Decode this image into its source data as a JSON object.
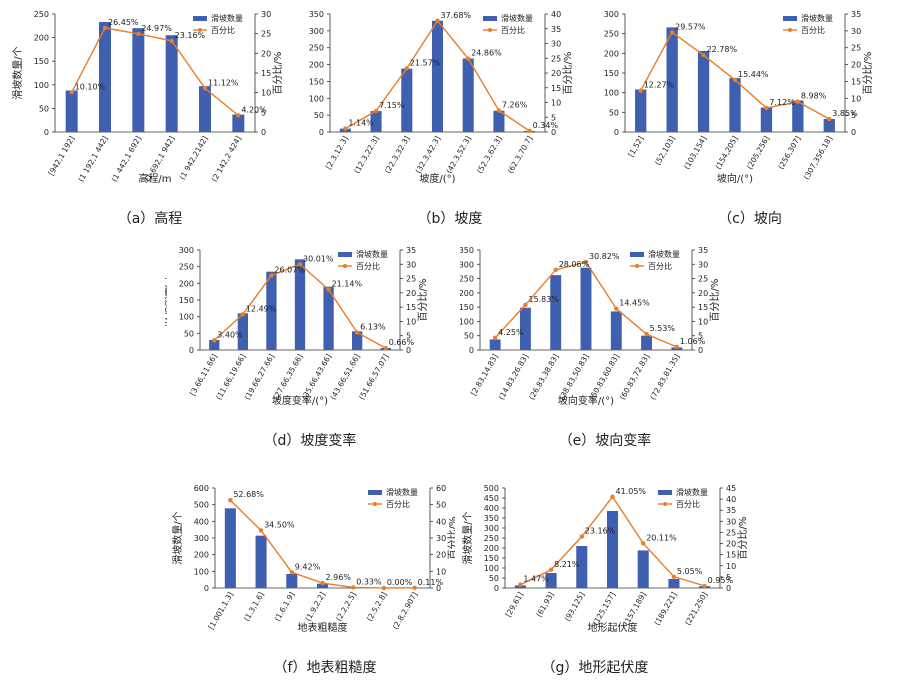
{
  "legend": {
    "bar_label": "滑坡数量",
    "line_label": "百分比"
  },
  "colors": {
    "bar": "#3f5fb0",
    "line": "#e87d2a",
    "axis": "#333333",
    "text": "#222222"
  },
  "chart_data": [
    {
      "id": "a",
      "type": "bar",
      "caption": "（a）高程",
      "xlabel": "高程/m",
      "ylabel": "滑坡数量/个",
      "y2label": "百分比/%",
      "ylim": [
        0,
        250
      ],
      "yticks": [
        0,
        50,
        100,
        150,
        200,
        250
      ],
      "y2lim": [
        0,
        30
      ],
      "y2ticks": [
        0,
        5,
        10,
        15,
        20,
        25,
        30
      ],
      "categories": [
        "[942,1 192]",
        "(1 192,1 442]",
        "(1 442,1 692]",
        "(1 692,1 942]",
        "(1 942,2142]",
        "(2 142,2 424]"
      ],
      "series": [
        {
          "name": "滑坡数量",
          "kind": "bar",
          "values": [
            88,
            233,
            220,
            205,
            97,
            37
          ]
        },
        {
          "name": "百分比",
          "kind": "line",
          "values": [
            10.1,
            26.45,
            24.97,
            23.16,
            11.12,
            4.2
          ]
        }
      ],
      "data_labels": [
        "10.10%",
        "26.45%",
        "24.97%",
        "23.16%",
        "11.12%",
        "4.20%"
      ],
      "grid": false,
      "legend_position": "top-right"
    },
    {
      "id": "b",
      "type": "bar",
      "caption": "（b）坡度",
      "xlabel": "坡度/(°)",
      "ylabel": "滑坡数量/个",
      "y2label": "百分比/%",
      "ylim": [
        0,
        350
      ],
      "yticks": [
        0,
        50,
        100,
        150,
        200,
        250,
        300,
        350
      ],
      "y2lim": [
        0,
        40
      ],
      "y2ticks": [
        0,
        5,
        10,
        15,
        20,
        25,
        30,
        35,
        40
      ],
      "categories": [
        "[2.3,12.3]",
        "(12.3,22.3]",
        "(22.3,32.3]",
        "(32.3,42.3]",
        "(42.3,52.3]",
        "(52.3,62.3]",
        "(62.3,70.7]"
      ],
      "series": [
        {
          "name": "滑坡数量",
          "kind": "bar",
          "values": [
            10,
            62,
            188,
            330,
            218,
            63,
            3
          ]
        },
        {
          "name": "百分比",
          "kind": "line",
          "values": [
            1.14,
            7.15,
            21.57,
            37.68,
            24.86,
            7.26,
            0.34
          ]
        }
      ],
      "data_labels": [
        "1.14%",
        "7.15%",
        "21.57%",
        "37.68%",
        "24.86%",
        "7.26%",
        "0.34%"
      ],
      "grid": false,
      "legend_position": "top-right"
    },
    {
      "id": "c",
      "type": "bar",
      "caption": "（c）坡向",
      "xlabel": "坡向/(°)",
      "ylabel": "滑坡数量/个",
      "y2label": "百分比/%",
      "ylim": [
        0,
        300
      ],
      "yticks": [
        0,
        50,
        100,
        150,
        200,
        250,
        300
      ],
      "y2lim": [
        0,
        35
      ],
      "y2ticks": [
        0,
        5,
        10,
        15,
        20,
        25,
        30,
        35
      ],
      "categories": [
        "[1,52]",
        "(52,103]",
        "(103,154]",
        "(154,205]",
        "(205,256]",
        "(256,307]",
        "(307,356.18]"
      ],
      "series": [
        {
          "name": "滑坡数量",
          "kind": "bar",
          "values": [
            108,
            266,
            206,
            137,
            62,
            80,
            33
          ]
        },
        {
          "name": "百分比",
          "kind": "line",
          "values": [
            12.27,
            29.57,
            22.78,
            15.44,
            7.12,
            8.98,
            3.85
          ]
        }
      ],
      "data_labels": [
        "12.27%",
        "29.57%",
        "22.78%",
        "15.44%",
        "7.12%",
        "8.98%",
        "3.85%"
      ],
      "grid": false,
      "legend_position": "top-right"
    },
    {
      "id": "d",
      "type": "bar",
      "caption": "（d）坡度变率",
      "xlabel": "坡度变率/(°)",
      "ylabel": "滑坡数量/个",
      "y2label": "百分比/%",
      "ylim": [
        0,
        300
      ],
      "yticks": [
        0,
        50,
        100,
        150,
        200,
        250,
        300
      ],
      "y2lim": [
        0,
        35
      ],
      "y2ticks": [
        0,
        5,
        10,
        15,
        20,
        25,
        30,
        35
      ],
      "categories": [
        "[3.66,11.66]",
        "(11.66,19.66]",
        "(19.66,27.66]",
        "(27.66,35.66]",
        "(35.66,43.66]",
        "(43.66,51.66]",
        "(51.66,57.07]"
      ],
      "series": [
        {
          "name": "滑坡数量",
          "kind": "bar",
          "values": [
            30,
            110,
            235,
            272,
            190,
            56,
            6
          ]
        },
        {
          "name": "百分比",
          "kind": "line",
          "values": [
            3.4,
            12.49,
            26.07,
            30.01,
            21.14,
            6.13,
            0.66
          ]
        }
      ],
      "data_labels": [
        "3.40%",
        "12.49%",
        "26.07%",
        "30.01%",
        "21.14%",
        "6.13%",
        "0.66%"
      ],
      "grid": false,
      "legend_position": "top-right"
    },
    {
      "id": "e",
      "type": "bar",
      "caption": "（e）坡向变率",
      "xlabel": "坡向变率/(°)",
      "ylabel": "滑坡数量/个",
      "y2label": "百分比/%",
      "ylim": [
        0,
        350
      ],
      "yticks": [
        0,
        50,
        100,
        150,
        200,
        250,
        300,
        350
      ],
      "y2lim": [
        0,
        35
      ],
      "y2ticks": [
        0,
        5,
        10,
        15,
        20,
        25,
        30,
        35
      ],
      "categories": [
        "[2.83,14.83]",
        "(14.83,26.83]",
        "(26.83,38.83]",
        "(38.83,50.83]",
        "(50.83,60.83]",
        "(60.83,72.83]",
        "(72.83,81.35]"
      ],
      "series": [
        {
          "name": "滑坡数量",
          "kind": "bar",
          "values": [
            37,
            148,
            262,
            288,
            135,
            50,
            9
          ]
        },
        {
          "name": "百分比",
          "kind": "line",
          "values": [
            4.25,
            15.83,
            28.06,
            30.82,
            14.45,
            5.53,
            1.06
          ]
        }
      ],
      "data_labels": [
        "4.25%",
        "15.83%",
        "28.06%",
        "30.82%",
        "14.45%",
        "5.53%",
        "1.06%"
      ],
      "grid": false,
      "legend_position": "top-right"
    },
    {
      "id": "f",
      "type": "bar",
      "caption": "（f）地表粗糙度",
      "xlabel": "地表粗糙度",
      "ylabel": "滑坡数量/个",
      "y2label": "百分比/%",
      "ylim": [
        0,
        600
      ],
      "yticks": [
        0,
        100,
        200,
        300,
        400,
        500,
        600
      ],
      "y2lim": [
        0,
        60
      ],
      "y2ticks": [
        0,
        10,
        20,
        30,
        40,
        50,
        60
      ],
      "categories": [
        "[1.001,1.3]",
        "(1.3,1.6]",
        "(1.6,1.9]",
        "(1.9,2.2]",
        "(2.2,2.5]",
        "(2.5,2.8]",
        "(2.8,2.907]"
      ],
      "series": [
        {
          "name": "滑坡数量",
          "kind": "bar",
          "values": [
            478,
            314,
            84,
            26,
            3,
            0,
            1
          ]
        },
        {
          "name": "百分比",
          "kind": "line",
          "values": [
            52.68,
            34.5,
            9.42,
            2.96,
            0.33,
            0.0,
            0.11
          ]
        }
      ],
      "data_labels": [
        "52.68%",
        "34.50%",
        "9.42%",
        "2.96%",
        "0.33%",
        "0.00%",
        "0.11%"
      ],
      "grid": false,
      "legend_position": "top-right"
    },
    {
      "id": "g",
      "type": "bar",
      "caption": "（g）地形起伏度",
      "xlabel": "地形起伏度",
      "ylabel": "滑坡数量/个",
      "y2label": "百分比/%",
      "ylim": [
        0,
        500
      ],
      "yticks": [
        0,
        50,
        100,
        150,
        200,
        250,
        300,
        350,
        400,
        450,
        500
      ],
      "y2lim": [
        0,
        45
      ],
      "y2ticks": [
        0,
        5,
        10,
        15,
        20,
        25,
        30,
        35,
        40,
        45
      ],
      "categories": [
        "[29,61]",
        "(61,93]",
        "(93,125]",
        "(125,157]",
        "(157,189]",
        "(189,221]",
        "(221,250]"
      ],
      "series": [
        {
          "name": "滑坡数量",
          "kind": "bar",
          "values": [
            13,
            75,
            210,
            385,
            188,
            45,
            9
          ]
        },
        {
          "name": "百分比",
          "kind": "line",
          "values": [
            1.47,
            8.21,
            23.16,
            41.05,
            20.11,
            5.05,
            0.95
          ]
        }
      ],
      "data_labels": [
        "1.47%",
        "8.21%",
        "23.16%",
        "41.05%",
        "20.11%",
        "5.05%",
        "0.95%"
      ],
      "grid": false,
      "legend_position": "top-right"
    }
  ]
}
